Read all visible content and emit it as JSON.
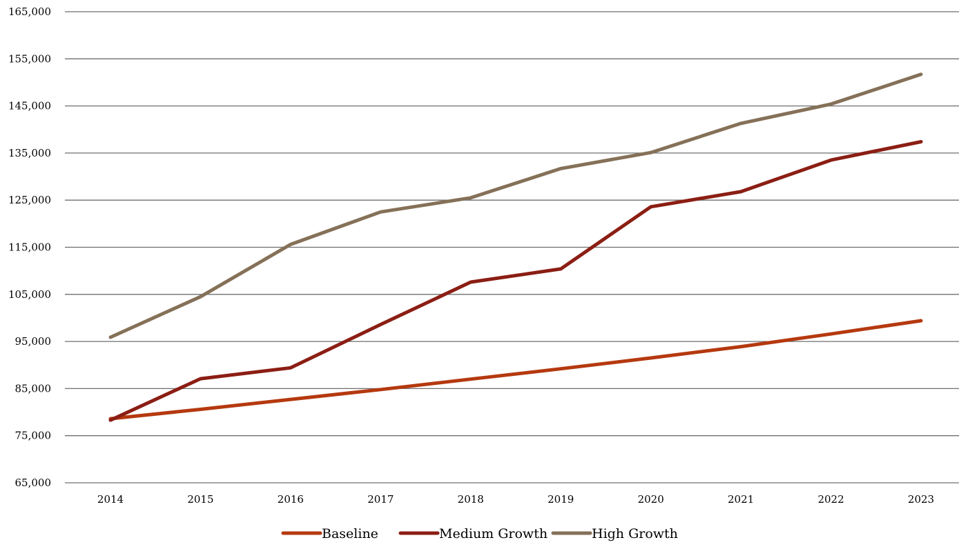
{
  "chart_data": {
    "type": "line",
    "title": "",
    "xlabel": "",
    "ylabel": "",
    "categories": [
      "2014",
      "2015",
      "2016",
      "2017",
      "2018",
      "2019",
      "2020",
      "2021",
      "2022",
      "2023"
    ],
    "ylim": [
      65000,
      165000
    ],
    "yticks": [
      65000,
      75000,
      85000,
      95000,
      105000,
      115000,
      125000,
      135000,
      145000,
      155000,
      165000
    ],
    "ytick_labels": [
      "65,000",
      "75,000",
      "85,000",
      "95,000",
      "105,000",
      "115,000",
      "125,000",
      "135,000",
      "145,000",
      "155,000",
      "165,000"
    ],
    "grid": "horizontal",
    "legend_position": "bottom-center",
    "series": [
      {
        "name": "Baseline",
        "color": "#B5390F",
        "values": [
          78600,
          80600,
          82700,
          84800,
          87000,
          89200,
          91500,
          93900,
          96600,
          99400
        ]
      },
      {
        "name": "Medium Growth",
        "color": "#8B1E14",
        "values": [
          78300,
          87100,
          89400,
          98600,
          107600,
          110400,
          123600,
          126800,
          133500,
          137400
        ]
      },
      {
        "name": "High Growth",
        "color": "#857158",
        "values": [
          95900,
          104500,
          115600,
          122500,
          125500,
          131700,
          135100,
          141300,
          145400,
          151700
        ]
      }
    ]
  }
}
